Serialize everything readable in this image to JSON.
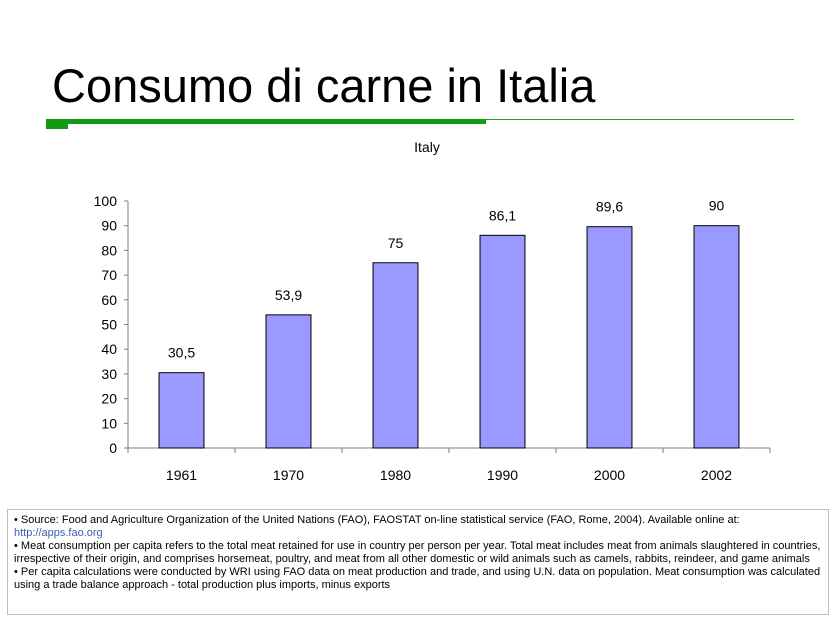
{
  "slide": {
    "title": "Consumo di carne in Italia"
  },
  "chart_data": {
    "type": "bar",
    "title": "Italy",
    "xlabel": "",
    "ylabel": "",
    "categories": [
      "1961",
      "1970",
      "1980",
      "1990",
      "2000",
      "2002"
    ],
    "values": [
      30.5,
      53.9,
      75,
      86.1,
      89.6,
      90
    ],
    "value_labels": [
      "30,5",
      "53,9",
      "75",
      "86,1",
      "89,6",
      "90"
    ],
    "ylim": [
      0,
      100
    ],
    "yticks": [
      0,
      10,
      20,
      30,
      40,
      50,
      60,
      70,
      80,
      90,
      100
    ],
    "grid": false,
    "legend": "none",
    "bar_color": "#9999ff",
    "bar_edge_color": "#000000"
  },
  "notes": {
    "source_text": "• Source: Food and Agriculture Organization of the United Nations (FAO), FAOSTAT on-line statistical service (FAO, Rome, 2004). Available online at:",
    "source_link": "http://apps.fao.org",
    "meat_definition": "• Meat consumption per capita refers to the total meat retained for use in country per person per year. Total meat includes meat from animals slaughtered in countries, irrespective of their origin, and comprises horsemeat, poultry, and meat from all other domestic or wild animals such as camels, rabbits, reindeer, and game animals",
    "per_capita_method": "• Per capita calculations were conducted by WRI using FAO data on meat production and trade, and using U.N. data on population. Meat consumption was calculated using a trade balance approach - total production plus imports, minus exports"
  },
  "colors": {
    "accent_green": "#129a12",
    "link_blue": "#3a5fae"
  }
}
